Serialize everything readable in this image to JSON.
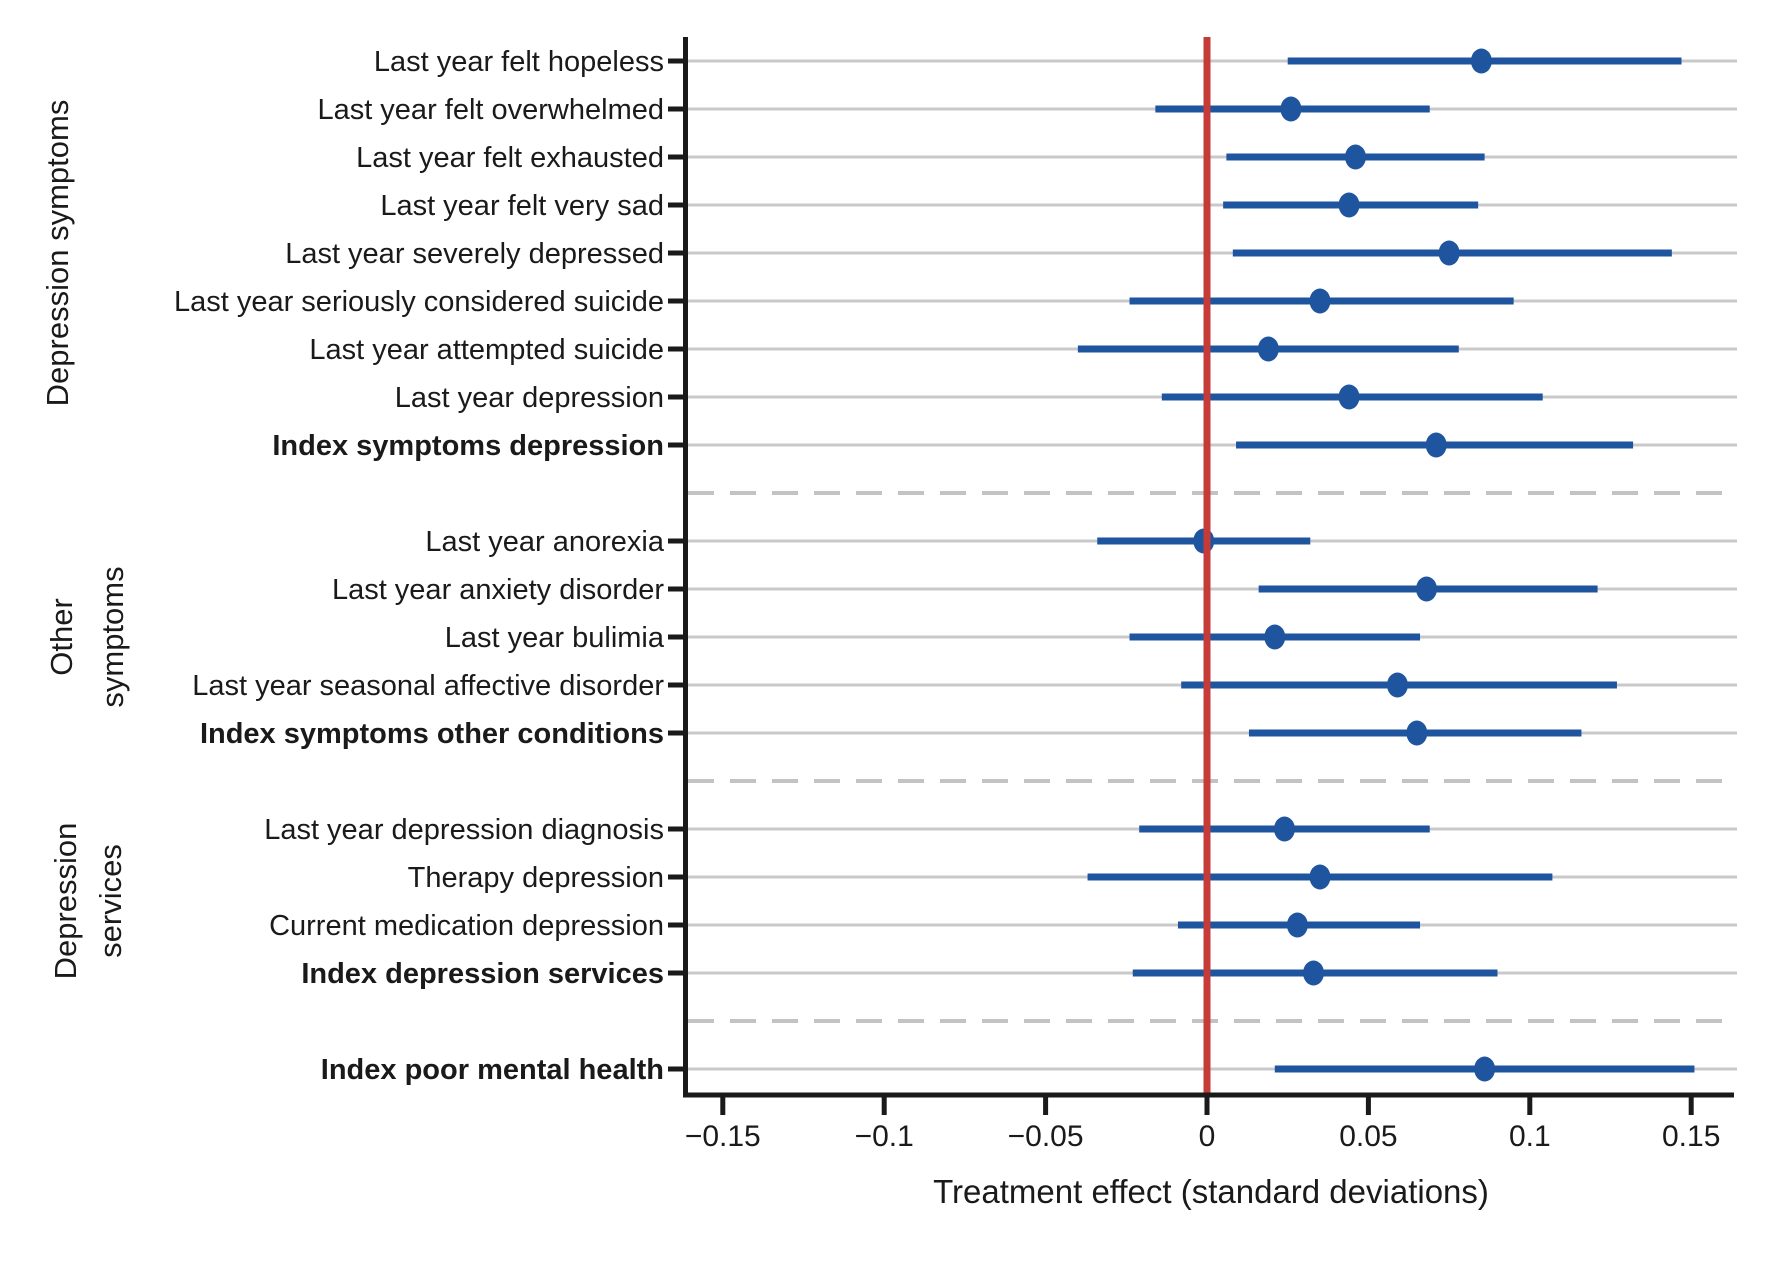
{
  "chart_data": {
    "type": "scatter",
    "subtype": "forest-plot-dot-with-ci",
    "x_axis": {
      "title": "Treatment effect (standard deviations)",
      "range": [
        -0.161,
        0.164
      ],
      "ticks": [
        {
          "value": -0.15,
          "label": "−0.15"
        },
        {
          "value": -0.1,
          "label": "−0.1"
        },
        {
          "value": -0.05,
          "label": "−0.05"
        },
        {
          "value": 0,
          "label": "0"
        },
        {
          "value": 0.05,
          "label": "0.05"
        },
        {
          "value": 0.1,
          "label": "0.1"
        },
        {
          "value": 0.15,
          "label": "0.15"
        }
      ]
    },
    "zero_line": {
      "value": 0,
      "color": "#c53b38"
    },
    "style": {
      "point_color": "#1f549e",
      "ci_color": "#1f549e",
      "grid_color": "#c9c9c9",
      "separator_color": "#c3c3c3",
      "axis_color": "#1a1a1a",
      "background": "#ffffff",
      "grid": "on",
      "legend": "none"
    },
    "groups": [
      {
        "name": "Depression symptoms",
        "label_lines": [
          "Depression symptoms"
        ],
        "rows": [
          {
            "label": "Last year felt hopeless",
            "bold": false,
            "est": 0.085,
            "ci_low": 0.025,
            "ci_high": 0.147
          },
          {
            "label": "Last year felt overwhelmed",
            "bold": false,
            "est": 0.026,
            "ci_low": -0.016,
            "ci_high": 0.069
          },
          {
            "label": "Last year felt exhausted",
            "bold": false,
            "est": 0.046,
            "ci_low": 0.006,
            "ci_high": 0.086
          },
          {
            "label": "Last year felt very sad",
            "bold": false,
            "est": 0.044,
            "ci_low": 0.005,
            "ci_high": 0.084
          },
          {
            "label": "Last year severely depressed",
            "bold": false,
            "est": 0.075,
            "ci_low": 0.008,
            "ci_high": 0.144
          },
          {
            "label": "Last year seriously considered suicide",
            "bold": false,
            "est": 0.035,
            "ci_low": -0.024,
            "ci_high": 0.095
          },
          {
            "label": "Last year attempted suicide",
            "bold": false,
            "est": 0.019,
            "ci_low": -0.04,
            "ci_high": 0.078
          },
          {
            "label": "Last year depression",
            "bold": false,
            "est": 0.044,
            "ci_low": -0.014,
            "ci_high": 0.104
          },
          {
            "label": "Index symptoms depression",
            "bold": true,
            "est": 0.071,
            "ci_low": 0.009,
            "ci_high": 0.132
          }
        ]
      },
      {
        "name": "Other symptoms",
        "label_lines": [
          "Other",
          "symptoms"
        ],
        "rows": [
          {
            "label": "Last year anorexia",
            "bold": false,
            "est": -0.001,
            "ci_low": -0.034,
            "ci_high": 0.032
          },
          {
            "label": "Last year anxiety disorder",
            "bold": false,
            "est": 0.068,
            "ci_low": 0.016,
            "ci_high": 0.121
          },
          {
            "label": "Last year bulimia",
            "bold": false,
            "est": 0.021,
            "ci_low": -0.024,
            "ci_high": 0.066
          },
          {
            "label": "Last year seasonal affective disorder",
            "bold": false,
            "est": 0.059,
            "ci_low": -0.008,
            "ci_high": 0.127
          },
          {
            "label": "Index symptoms other conditions",
            "bold": true,
            "est": 0.065,
            "ci_low": 0.013,
            "ci_high": 0.116
          }
        ]
      },
      {
        "name": "Depression services",
        "label_lines": [
          "Depression",
          "services"
        ],
        "rows": [
          {
            "label": "Last year depression diagnosis",
            "bold": false,
            "est": 0.024,
            "ci_low": -0.021,
            "ci_high": 0.069
          },
          {
            "label": "Therapy depression",
            "bold": false,
            "est": 0.035,
            "ci_low": -0.037,
            "ci_high": 0.107
          },
          {
            "label": "Current medication depression",
            "bold": false,
            "est": 0.028,
            "ci_low": -0.009,
            "ci_high": 0.066
          },
          {
            "label": "Index depression services",
            "bold": true,
            "est": 0.033,
            "ci_low": -0.023,
            "ci_high": 0.09
          }
        ]
      },
      {
        "name": "",
        "label_lines": [],
        "rows": [
          {
            "label": "Index poor mental health",
            "bold": true,
            "est": 0.086,
            "ci_low": 0.021,
            "ci_high": 0.151
          }
        ]
      }
    ]
  }
}
